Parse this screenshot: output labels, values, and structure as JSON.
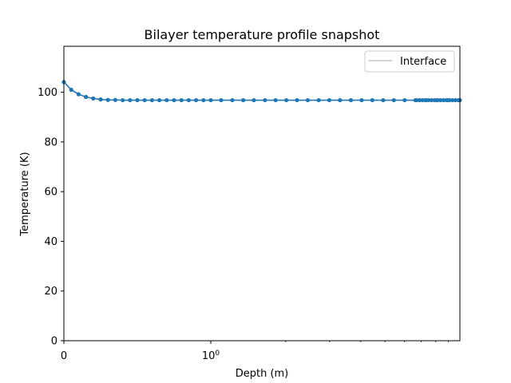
{
  "chart_data": {
    "type": "line",
    "title": "Bilayer temperature profile snapshot",
    "xlabel": "Depth (m)",
    "ylabel": "Temperature (K)",
    "xscale": "symlog",
    "linthresh": 1,
    "xlim": [
      0,
      10
    ],
    "ylim": [
      0,
      118.5
    ],
    "yticks": [
      0,
      20,
      40,
      60,
      80,
      100
    ],
    "ytick_labels": [
      "0",
      "20",
      "40",
      "60",
      "80",
      "100"
    ],
    "xticks": [
      0,
      1
    ],
    "xtick_labels": [
      "0",
      "10^0"
    ],
    "x_minor_ticks": [
      2,
      3,
      4,
      5,
      6,
      7,
      8,
      9,
      10
    ],
    "grid": false,
    "legend": {
      "position": "top-right",
      "entries": [
        {
          "label": "Interface",
          "color": "#c0c0c0"
        }
      ]
    },
    "interface_depth": null,
    "series": [
      {
        "color": "#1f77b4",
        "marker": "circle",
        "equilibrium": 96.8,
        "surface": 104.1,
        "decay_depth": 0.08,
        "x": [
          0.0,
          0.05,
          0.1,
          0.15,
          0.2,
          0.25,
          0.3,
          0.35,
          0.4,
          0.45,
          0.5,
          0.55,
          0.6,
          0.65,
          0.7,
          0.75,
          0.8,
          0.85,
          0.9,
          0.95,
          1.0,
          1.1,
          1.22,
          1.35,
          1.49,
          1.65,
          1.82,
          2.01,
          2.22,
          2.45,
          2.71,
          2.99,
          3.3,
          3.65,
          4.03,
          4.45,
          4.92,
          5.43,
          6.0,
          6.63,
          7.32,
          8.09,
          8.94,
          10.0
        ],
        "y": [
          104.1,
          101.0,
          99.2,
          98.1,
          97.5,
          97.1,
          96.9,
          96.9,
          96.8,
          96.8,
          96.8,
          96.8,
          96.8,
          96.8,
          96.8,
          96.8,
          96.8,
          96.8,
          96.8,
          96.8,
          96.8,
          96.8,
          96.8,
          96.8,
          96.8,
          96.8,
          96.8,
          96.8,
          96.8,
          96.8,
          96.8,
          96.8,
          96.8,
          96.8,
          96.8,
          96.8,
          96.8,
          96.8,
          96.8,
          96.8,
          96.8,
          96.8,
          96.8,
          96.8
        ]
      }
    ]
  }
}
